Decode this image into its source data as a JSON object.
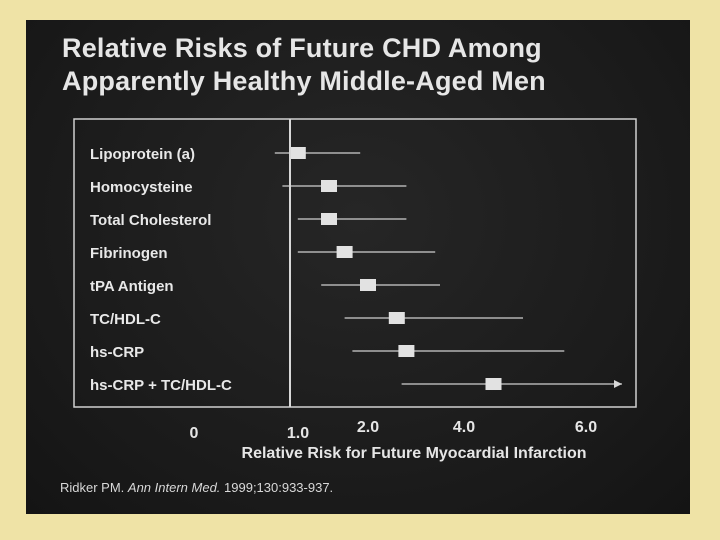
{
  "title_line1": "Relative Risks of Future CHD Among",
  "title_line2": "Apparently Healthy Middle-Aged Men",
  "citation": {
    "author": "Ridker PM. ",
    "journal": "Ann Intern Med.",
    "details": " 1999;130:933-937."
  },
  "chart_data": {
    "type": "scatter",
    "subtype": "forest-plot",
    "title": "Relative Risks of Future CHD Among Apparently Healthy Middle-Aged Men",
    "xlabel": "Relative Risk for Future Myocardial Infarction",
    "ylabel": "",
    "x_scale": "nonlinear (0, 1.0, 2.0, 4.0, 6.0 ticks unevenly spaced)",
    "x_ticks": [
      "0",
      "1.0",
      "2.0",
      "4.0",
      "6.0"
    ],
    "x_tick_values": [
      0,
      1.0,
      2.0,
      4.0,
      6.0
    ],
    "reference_line": 1.0,
    "grid": false,
    "series": [
      {
        "categories": [
          "Lipoprotein (a)",
          "Homocysteine",
          "Total Cholesterol",
          "Fibrinogen",
          "tPA Antigen",
          "TC/HDL-C",
          "hs-CRP",
          "hs-CRP + TC/HDL-C"
        ],
        "estimate": [
          1.1,
          1.5,
          1.5,
          1.7,
          2.0,
          2.6,
          2.8,
          4.5
        ],
        "ci_low": [
          0.8,
          0.9,
          1.1,
          1.1,
          1.4,
          1.7,
          1.8,
          2.7
        ],
        "ci_high": [
          1.9,
          2.8,
          2.8,
          3.4,
          3.5,
          5.0,
          5.7,
          7.0
        ],
        "ci_upper_arrow": [
          false,
          false,
          false,
          false,
          false,
          false,
          false,
          true
        ]
      }
    ]
  },
  "colors": {
    "slide_bg": "#1c1c1c",
    "page_bg": "#efe3a6",
    "text": "#e6e6e6",
    "marker": "#e2e2e2",
    "line": "#cfcfcf"
  }
}
